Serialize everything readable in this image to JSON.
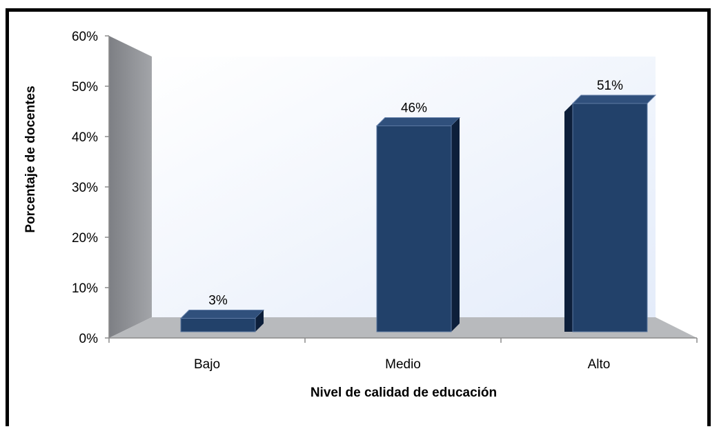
{
  "chart_data": {
    "type": "bar",
    "categories": [
      "Bajo",
      "Medio",
      "Alto"
    ],
    "values": [
      3,
      46,
      51
    ],
    "data_labels": [
      "3%",
      "46%",
      "51%"
    ],
    "xlabel": "Nivel de calidad de educación",
    "ylabel": "Porcentaje de docentes",
    "ylim": [
      0,
      60
    ],
    "yticks": [
      "0%",
      "10%",
      "20%",
      "30%",
      "40%",
      "50%",
      "60%"
    ],
    "grid": false,
    "legend": "none",
    "colors": {
      "bar_front": "#22416a",
      "bar_side": "#0d1f3a",
      "bar_top": "#30507c",
      "back_wall_start": "#ffffff",
      "back_wall_end": "#e4ecfa",
      "side_wall": "#8f9196",
      "floor": "#b8babd"
    }
  }
}
